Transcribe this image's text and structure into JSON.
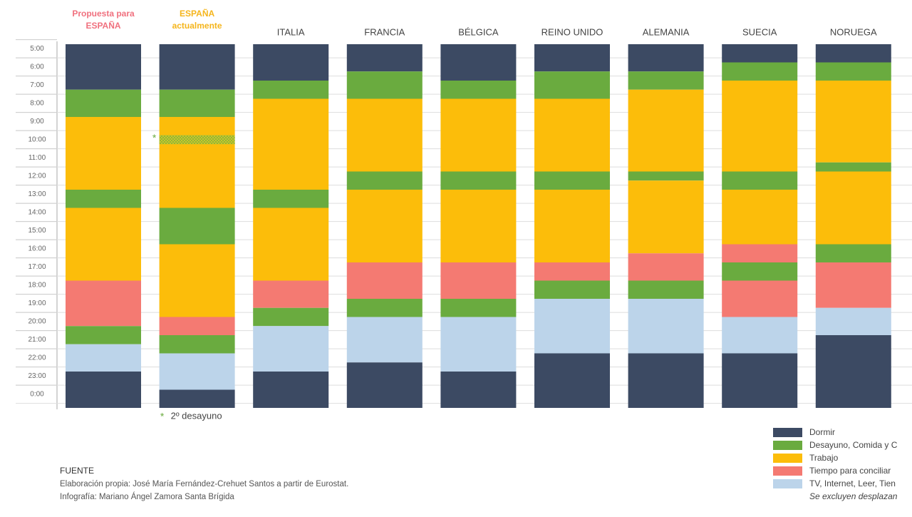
{
  "chart_data": {
    "type": "stacked-schedule",
    "ylim": [
      4.75,
      24.75
    ],
    "yticks": [
      {
        "value": 5,
        "label": "5:00"
      },
      {
        "value": 6,
        "label": "6:00"
      },
      {
        "value": 7,
        "label": "7:00"
      },
      {
        "value": 8,
        "label": "8:00"
      },
      {
        "value": 9,
        "label": "9:00"
      },
      {
        "value": 10,
        "label": "10:00"
      },
      {
        "value": 11,
        "label": "11:00"
      },
      {
        "value": 12,
        "label": "12:00"
      },
      {
        "value": 13,
        "label": "13:00"
      },
      {
        "value": 14,
        "label": "14:00"
      },
      {
        "value": 15,
        "label": "15:00"
      },
      {
        "value": 16,
        "label": "16:00"
      },
      {
        "value": 17,
        "label": "17:00"
      },
      {
        "value": 18,
        "label": "18:00"
      },
      {
        "value": 19,
        "label": "19:00"
      },
      {
        "value": 20,
        "label": "20:00"
      },
      {
        "value": 21,
        "label": "21:00"
      },
      {
        "value": 22,
        "label": "22:00"
      },
      {
        "value": 23,
        "label": "23:00"
      },
      {
        "value": 24,
        "label": "0:00"
      }
    ],
    "grid": true,
    "series": [
      {
        "name": "Dormir",
        "color": "#3c4a63"
      },
      {
        "name": "Desayuno, Comida y C",
        "color": "#6aab3f"
      },
      {
        "name": "Trabajo",
        "color": "#fcbd0a"
      },
      {
        "name": "Tiempo para conciliar",
        "color": "#f47a72"
      },
      {
        "name": "TV, Internet, Leer, Tien",
        "color": "#bcd4ea"
      }
    ],
    "legend_note": "Se excluyen desplazan",
    "columns": [
      {
        "name": "Propuesta para ESPAÑA",
        "color": "#f0707e",
        "segments": [
          {
            "series": 0,
            "value": 2.5
          },
          {
            "series": 1,
            "value": 1.5
          },
          {
            "series": 2,
            "value": 4
          },
          {
            "series": 1,
            "value": 1
          },
          {
            "series": 2,
            "value": 4
          },
          {
            "series": 3,
            "value": 2.5
          },
          {
            "series": 1,
            "value": 1
          },
          {
            "series": 4,
            "value": 1.5
          },
          {
            "series": 0,
            "value": 2
          }
        ]
      },
      {
        "name": "ESPAÑA actualmente",
        "color": "#f5b51c",
        "segments": [
          {
            "series": 0,
            "value": 2.5
          },
          {
            "series": 1,
            "value": 1.5
          },
          {
            "series": 2,
            "value": 5
          },
          {
            "series": 1,
            "value": 2
          },
          {
            "series": 2,
            "value": 4
          },
          {
            "series": 3,
            "value": 1
          },
          {
            "series": 1,
            "value": 1
          },
          {
            "series": 4,
            "value": 2
          },
          {
            "series": 0,
            "value": 1
          }
        ]
      },
      {
        "name": "ITALIA",
        "color": "#444444",
        "segments": [
          {
            "series": 0,
            "value": 2
          },
          {
            "series": 1,
            "value": 1
          },
          {
            "series": 2,
            "value": 5
          },
          {
            "series": 1,
            "value": 1
          },
          {
            "series": 2,
            "value": 4
          },
          {
            "series": 3,
            "value": 1.5
          },
          {
            "series": 1,
            "value": 1
          },
          {
            "series": 4,
            "value": 2.5
          },
          {
            "series": 0,
            "value": 2
          }
        ]
      },
      {
        "name": "FRANCIA",
        "color": "#444444",
        "segments": [
          {
            "series": 0,
            "value": 1.5
          },
          {
            "series": 1,
            "value": 1.5
          },
          {
            "series": 2,
            "value": 4
          },
          {
            "series": 1,
            "value": 1
          },
          {
            "series": 2,
            "value": 4
          },
          {
            "series": 3,
            "value": 2
          },
          {
            "series": 1,
            "value": 1
          },
          {
            "series": 4,
            "value": 2.5
          },
          {
            "series": 0,
            "value": 2.5
          }
        ]
      },
      {
        "name": "BÉLGICA",
        "color": "#444444",
        "segments": [
          {
            "series": 0,
            "value": 2
          },
          {
            "series": 1,
            "value": 1
          },
          {
            "series": 2,
            "value": 4
          },
          {
            "series": 1,
            "value": 1
          },
          {
            "series": 2,
            "value": 4
          },
          {
            "series": 3,
            "value": 2
          },
          {
            "series": 1,
            "value": 1
          },
          {
            "series": 4,
            "value": 3
          },
          {
            "series": 0,
            "value": 2
          }
        ]
      },
      {
        "name": "REINO UNIDO",
        "color": "#444444",
        "segments": [
          {
            "series": 0,
            "value": 1.5
          },
          {
            "series": 1,
            "value": 1.5
          },
          {
            "series": 2,
            "value": 4
          },
          {
            "series": 1,
            "value": 1
          },
          {
            "series": 2,
            "value": 4
          },
          {
            "series": 3,
            "value": 1
          },
          {
            "series": 1,
            "value": 1
          },
          {
            "series": 4,
            "value": 3
          },
          {
            "series": 0,
            "value": 3
          }
        ]
      },
      {
        "name": "ALEMANIA",
        "color": "#444444",
        "segments": [
          {
            "series": 0,
            "value": 1.5
          },
          {
            "series": 1,
            "value": 1
          },
          {
            "series": 2,
            "value": 4.5
          },
          {
            "series": 1,
            "value": 0.5
          },
          {
            "series": 2,
            "value": 4
          },
          {
            "series": 3,
            "value": 1.5
          },
          {
            "series": 1,
            "value": 1
          },
          {
            "series": 4,
            "value": 3
          },
          {
            "series": 0,
            "value": 3
          }
        ]
      },
      {
        "name": "SUECIA",
        "color": "#444444",
        "segments": [
          {
            "series": 0,
            "value": 1
          },
          {
            "series": 1,
            "value": 1
          },
          {
            "series": 2,
            "value": 5
          },
          {
            "series": 1,
            "value": 1
          },
          {
            "series": 2,
            "value": 3
          },
          {
            "series": 3,
            "value": 1
          },
          {
            "series": 1,
            "value": 1
          },
          {
            "series": 3,
            "value": 2
          },
          {
            "series": 4,
            "value": 2
          },
          {
            "series": 0,
            "value": 3
          }
        ]
      },
      {
        "name": "NORUEGA",
        "color": "#444444",
        "segments": [
          {
            "series": 0,
            "value": 1
          },
          {
            "series": 1,
            "value": 1
          },
          {
            "series": 2,
            "value": 4.5
          },
          {
            "series": 1,
            "value": 0.5
          },
          {
            "series": 2,
            "value": 4
          },
          {
            "series": 1,
            "value": 1
          },
          {
            "series": 3,
            "value": 2.5
          },
          {
            "series": 4,
            "value": 1.5
          },
          {
            "series": 0,
            "value": 4
          }
        ]
      }
    ],
    "second_breakfast": {
      "marker": "*",
      "label": "2º desayuno",
      "column": 1,
      "start": 9.75,
      "value": 0.5
    },
    "source": {
      "title": "FUENTE",
      "lines": [
        "Elaboración propia: José María Fernández-Crehuet Santos a partir de Eurostat.",
        "Infografía: Mariano Ángel Zamora Santa Brígida"
      ]
    }
  }
}
